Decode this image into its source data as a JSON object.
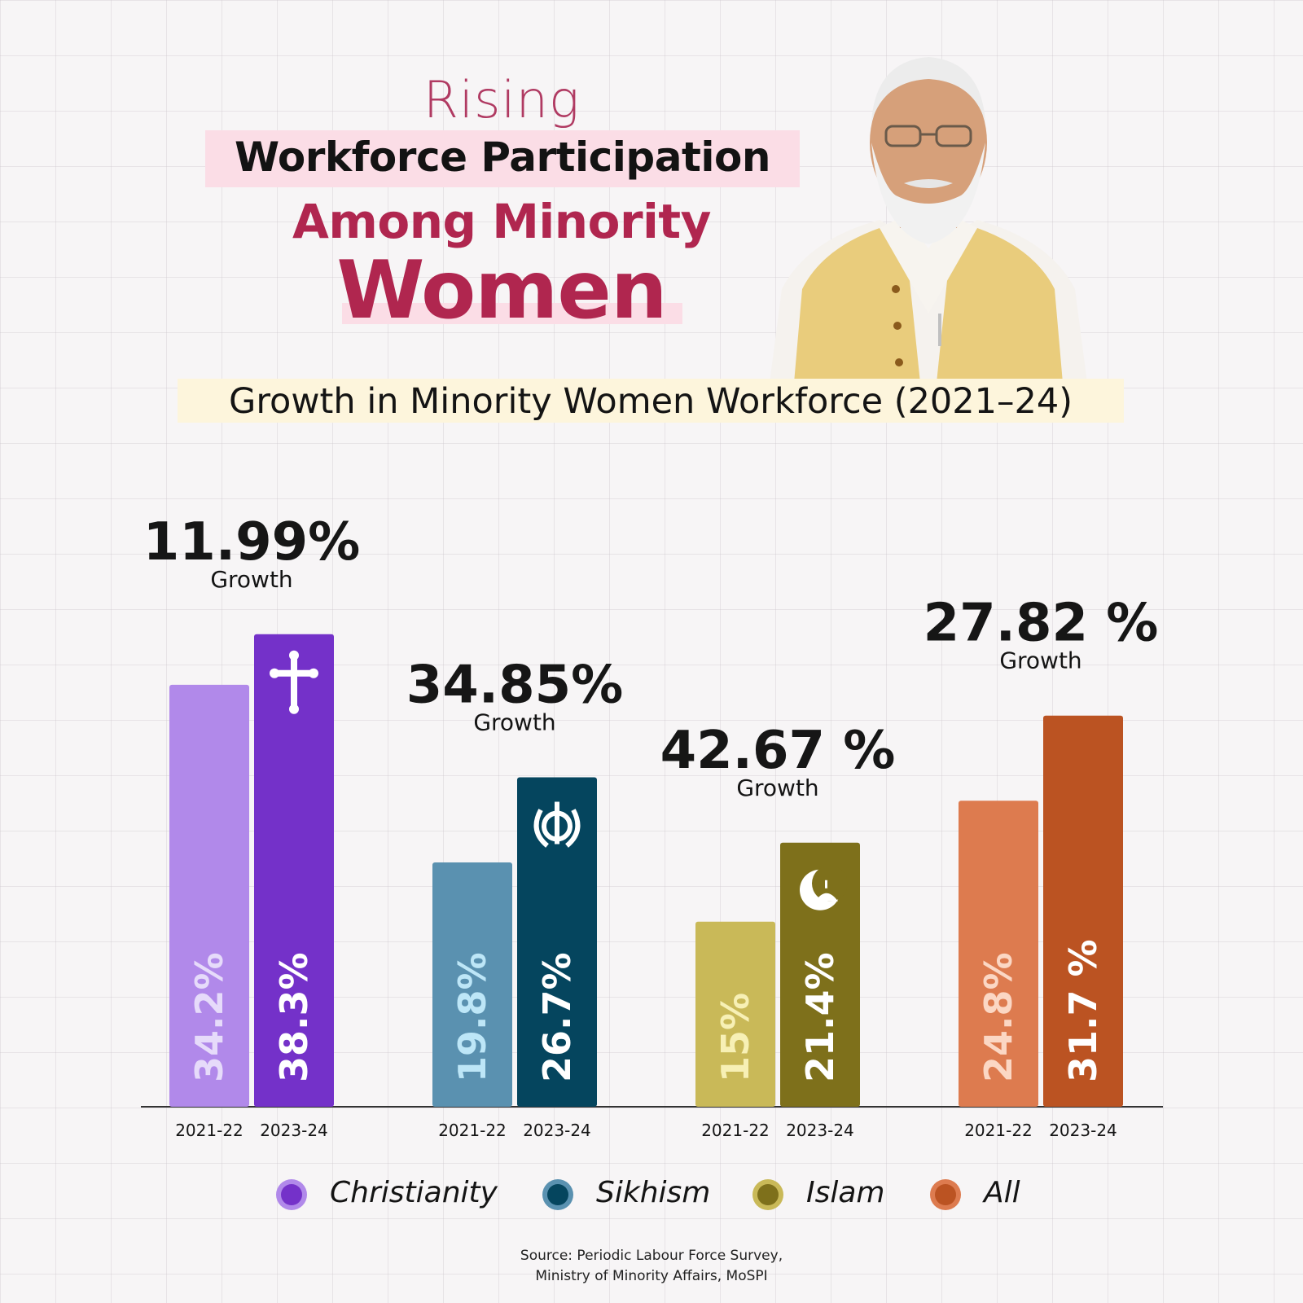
{
  "header": {
    "rising": "Rising",
    "workforce_participation": "Workforce Participation",
    "among_minority": "Among Minority",
    "women": "Women"
  },
  "subtitle": "Growth in Minority Women Workforce (2021–24)",
  "chart_data": {
    "type": "bar",
    "title": "Growth in Minority Women Workforce (2021–24)",
    "categories": [
      "2021-22",
      "2023-24"
    ],
    "value_unit": "%",
    "groups": [
      {
        "name": "Christianity",
        "icon": "cross-icon",
        "values": [
          34.2,
          38.3
        ],
        "value_labels": [
          "34.2%",
          "38.3%"
        ],
        "growth_label": "11.99%",
        "growth_word": "Growth",
        "colors": [
          "#b189ea",
          "#7431c9"
        ],
        "label_colors": [
          "#e6dbfa",
          "#ffffff"
        ]
      },
      {
        "name": "Sikhism",
        "icon": "khanda-icon",
        "values": [
          19.8,
          26.7
        ],
        "value_labels": [
          "19.8%",
          "26.7%"
        ],
        "growth_label": "34.85%",
        "growth_word": "Growth",
        "colors": [
          "#5a91b0",
          "#05455e"
        ],
        "label_colors": [
          "#bde6f7",
          "#ffffff"
        ]
      },
      {
        "name": "Islam",
        "icon": "crescent-mosque-icon",
        "values": [
          15,
          21.4
        ],
        "value_labels": [
          "15%",
          "21.4%"
        ],
        "growth_label": "42.67 %",
        "growth_word": "Growth",
        "colors": [
          "#c9b958",
          "#7e701b"
        ],
        "label_colors": [
          "#f7f0b5",
          "#ffffff"
        ]
      },
      {
        "name": "All",
        "icon": "",
        "values": [
          24.8,
          31.7
        ],
        "value_labels": [
          "24.8%",
          "31.7 %"
        ],
        "growth_label": "27.82 %",
        "growth_word": "Growth",
        "colors": [
          "#dd7b4f",
          "#bb5322"
        ],
        "label_colors": [
          "#fbd7c4",
          "#ffffff"
        ]
      }
    ],
    "legend": [
      {
        "label": "Christianity",
        "color": "#7431c9",
        "ring": "#b189ea"
      },
      {
        "label": "Sikhism",
        "color": "#05455e",
        "ring": "#5a91b0"
      },
      {
        "label": "Islam",
        "color": "#7e701b",
        "ring": "#c9b958"
      },
      {
        "label": "All",
        "color": "#bb5322",
        "ring": "#dd7b4f"
      }
    ],
    "legend_position": "bottom"
  },
  "source": {
    "line1": "Source: Periodic Labour Force Survey,",
    "line2": "Ministry of Minority Affairs, MoSPI"
  }
}
